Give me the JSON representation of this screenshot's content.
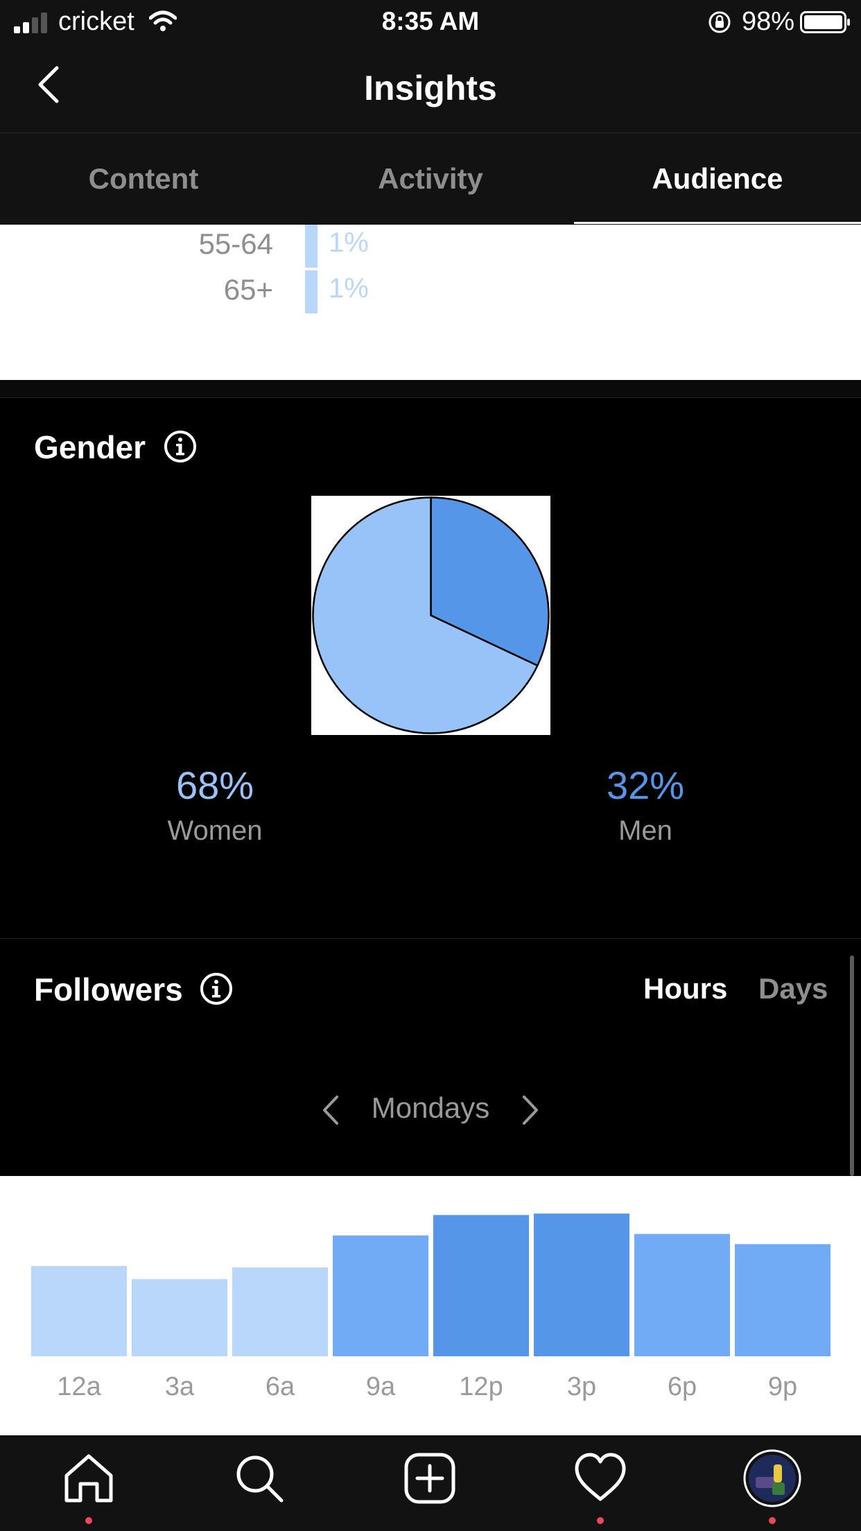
{
  "status_bar": {
    "carrier": "cricket",
    "time": "8:35 AM",
    "battery": "98%"
  },
  "header": {
    "title": "Insights"
  },
  "tabs": [
    {
      "label": "Content",
      "active": false
    },
    {
      "label": "Activity",
      "active": false
    },
    {
      "label": "Audience",
      "active": true
    }
  ],
  "age_ranges": [
    {
      "label": "55-64",
      "value": "1%"
    },
    {
      "label": "65+",
      "value": "1%"
    }
  ],
  "gender": {
    "title": "Gender",
    "women": {
      "value": "68%",
      "label": "Women",
      "color": "#97c3f9"
    },
    "men": {
      "value": "32%",
      "label": "Men",
      "color": "#5596e9"
    }
  },
  "followers": {
    "title": "Followers",
    "toggle": {
      "hours": "Hours",
      "days": "Days",
      "selected": "Hours"
    },
    "day": "Mondays"
  },
  "chart_data": [
    {
      "type": "pie",
      "title": "Gender",
      "categories": [
        "Women",
        "Men"
      ],
      "values": [
        68,
        32
      ],
      "colors": [
        "#97c3f9",
        "#5596e9"
      ]
    },
    {
      "type": "bar",
      "title": "Followers",
      "categories": [
        "12a",
        "3a",
        "6a",
        "9a",
        "12p",
        "3p",
        "6p",
        "9p"
      ],
      "values": [
        62,
        53,
        61,
        83,
        97,
        98,
        84,
        77
      ],
      "ylim": [
        0,
        100
      ]
    }
  ],
  "icons": {
    "nav": [
      "home-icon",
      "search-icon",
      "add-post-icon",
      "heart-icon",
      "profile-avatar"
    ]
  }
}
